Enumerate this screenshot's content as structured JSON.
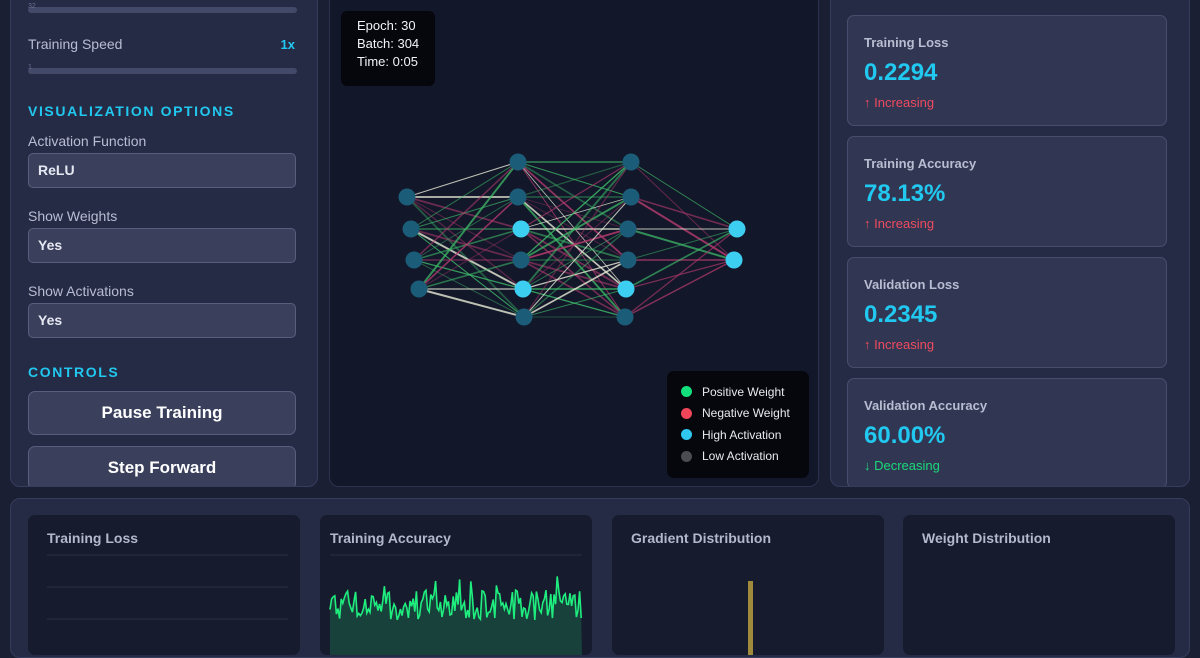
{
  "controls_panel": {
    "training_speed_label": "Training Speed",
    "training_speed_value": "1x",
    "top_slider_mark": "32",
    "speed_slider_mark": "1",
    "visualization_title": "VISUALIZATION OPTIONS",
    "activation_function_label": "Activation Function",
    "activation_function_value": "ReLU",
    "show_weights_label": "Show Weights",
    "show_weights_value": "Yes",
    "show_activations_label": "Show Activations",
    "show_activations_value": "Yes",
    "controls_title": "CONTROLS",
    "pause_button": "Pause Training",
    "step_button": "Step Forward"
  },
  "network_view": {
    "epoch": "Epoch: 30",
    "batch": "Batch: 304",
    "time": "Time: 0:05",
    "layer_sizes": [
      4,
      6,
      6,
      2
    ],
    "legend": [
      {
        "label": "Positive Weight",
        "color": "#13e07c"
      },
      {
        "label": "Negative Weight",
        "color": "#ef4558"
      },
      {
        "label": "High Activation",
        "color": "#2fc6ef"
      },
      {
        "label": "Low Activation",
        "color": "#4a4c52"
      }
    ],
    "colors": {
      "node_low": "#1b5d78",
      "node_high": "#3dcff2",
      "positive_edge": "#3fbf6a",
      "negative_edge": "#b43b6e"
    }
  },
  "metrics": [
    {
      "title": "Training Loss",
      "value": "0.2294",
      "trend": "↑ Increasing",
      "direction": "up"
    },
    {
      "title": "Training Accuracy",
      "value": "78.13%",
      "trend": "↑ Increasing",
      "direction": "up"
    },
    {
      "title": "Validation Loss",
      "value": "0.2345",
      "trend": "↑ Increasing",
      "direction": "up"
    },
    {
      "title": "Validation Accuracy",
      "value": "60.00%",
      "trend": "↓ Decreasing",
      "direction": "down"
    }
  ],
  "bottom_charts": [
    {
      "title": "Training Loss"
    },
    {
      "title": "Training Accuracy"
    },
    {
      "title": "Gradient Distribution"
    },
    {
      "title": "Weight Distribution"
    }
  ],
  "colors": {
    "accent": "#21c8ef",
    "accuracy_line": "#1fee7f",
    "gradient_bar": "#a08a3c"
  }
}
